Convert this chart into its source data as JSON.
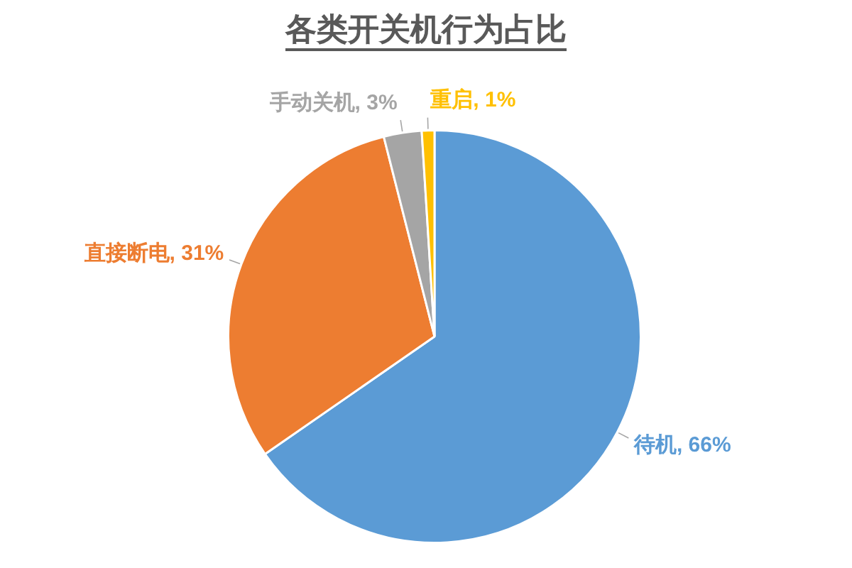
{
  "chart_data": {
    "type": "pie",
    "title": "各类开关机行为占比",
    "categories": [
      "待机",
      "直接断电",
      "手动关机",
      "重启"
    ],
    "values": [
      66,
      31,
      3,
      1
    ],
    "colors": [
      "#5b9bd5",
      "#ed7d31",
      "#a5a5a5",
      "#ffc000"
    ],
    "value_labels": [
      "66%",
      "31%",
      "3%",
      "1%"
    ]
  }
}
